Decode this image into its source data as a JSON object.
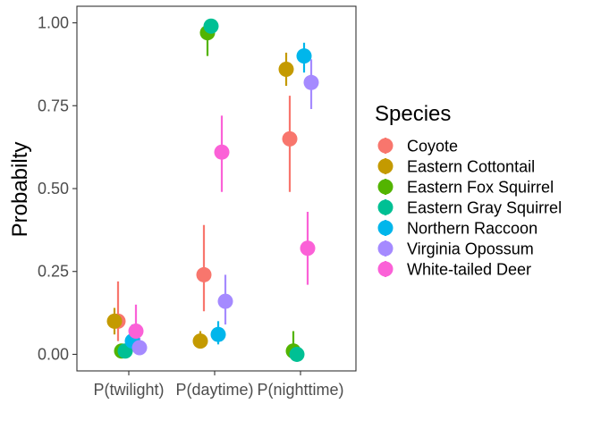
{
  "chart_data": {
    "type": "scatter",
    "title": "",
    "xlabel": "",
    "ylabel": "Probabilty",
    "categories": [
      "P(twilight)",
      "P(daytime)",
      "P(nighttime)"
    ],
    "yticks": [
      "0.00",
      "0.25",
      "0.50",
      "0.75",
      "1.00"
    ],
    "ylim": [
      -0.05,
      1.05
    ],
    "grid": false,
    "error_bars": true,
    "legend": {
      "title": "Species",
      "position": "right"
    },
    "series": [
      {
        "name": "Coyote",
        "color": "#F8766D",
        "values": [
          0.1,
          0.24,
          0.65
        ],
        "lower": [
          0.04,
          0.13,
          0.49
        ],
        "upper": [
          0.22,
          0.39,
          0.78
        ]
      },
      {
        "name": "Eastern Cottontail",
        "color": "#C49A00",
        "values": [
          0.1,
          0.04,
          0.86
        ],
        "lower": [
          0.06,
          0.02,
          0.81
        ],
        "upper": [
          0.14,
          0.07,
          0.91
        ]
      },
      {
        "name": "Eastern Fox Squirrel",
        "color": "#53B400",
        "values": [
          0.01,
          0.97,
          0.01
        ],
        "lower": [
          0.0,
          0.9,
          0.0
        ],
        "upper": [
          0.03,
          0.99,
          0.07
        ]
      },
      {
        "name": "Eastern Gray Squirrel",
        "color": "#00C094",
        "values": [
          0.01,
          0.99,
          0.0
        ],
        "lower": [
          0.0,
          0.97,
          0.0
        ],
        "upper": [
          0.03,
          1.0,
          0.02
        ]
      },
      {
        "name": "Northern Raccoon",
        "color": "#00B6EB",
        "values": [
          0.04,
          0.06,
          0.9
        ],
        "lower": [
          0.01,
          0.03,
          0.85
        ],
        "upper": [
          0.09,
          0.1,
          0.94
        ]
      },
      {
        "name": "Virginia Opossum",
        "color": "#A58AFF",
        "values": [
          0.02,
          0.16,
          0.82
        ],
        "lower": [
          0.0,
          0.09,
          0.74
        ],
        "upper": [
          0.05,
          0.24,
          0.89
        ]
      },
      {
        "name": "White-tailed Deer",
        "color": "#FB61D7",
        "values": [
          0.07,
          0.61,
          0.32
        ],
        "lower": [
          0.03,
          0.49,
          0.21
        ],
        "upper": [
          0.15,
          0.72,
          0.43
        ]
      }
    ]
  }
}
